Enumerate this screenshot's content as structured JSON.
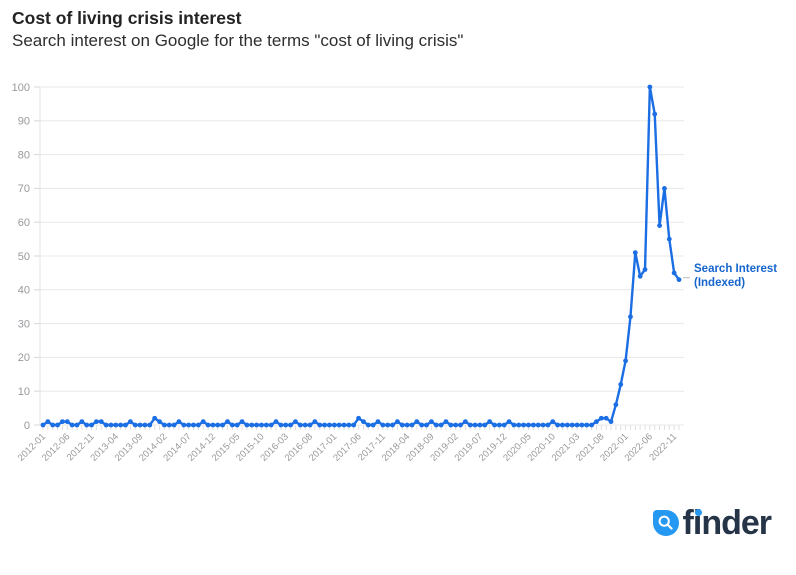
{
  "chart_data": {
    "type": "line",
    "title": "Cost of living crisis interest",
    "subtitle": "Search interest on Google for the terms \"cost of living crisis\"",
    "xlabel": "",
    "ylabel": "",
    "ylim": [
      0,
      100
    ],
    "yticks": [
      0,
      10,
      20,
      30,
      40,
      50,
      60,
      70,
      80,
      90,
      100
    ],
    "xtick_every": 5,
    "grid": "horizontal",
    "legend_position": "right-of-last-point",
    "legend": {
      "line1": "Search Interest",
      "line2": "(Indexed)"
    },
    "x": [
      "2012-01",
      "2012-02",
      "2012-03",
      "2012-04",
      "2012-05",
      "2012-06",
      "2012-07",
      "2012-08",
      "2012-09",
      "2012-10",
      "2012-11",
      "2012-12",
      "2013-01",
      "2013-02",
      "2013-03",
      "2013-04",
      "2013-05",
      "2013-06",
      "2013-07",
      "2013-08",
      "2013-09",
      "2013-10",
      "2013-11",
      "2013-12",
      "2014-01",
      "2014-02",
      "2014-03",
      "2014-04",
      "2014-05",
      "2014-06",
      "2014-07",
      "2014-08",
      "2014-09",
      "2014-10",
      "2014-11",
      "2014-12",
      "2015-01",
      "2015-02",
      "2015-03",
      "2015-04",
      "2015-05",
      "2015-06",
      "2015-07",
      "2015-08",
      "2015-09",
      "2015-10",
      "2015-11",
      "2015-12",
      "2016-01",
      "2016-02",
      "2016-03",
      "2016-04",
      "2016-05",
      "2016-06",
      "2016-07",
      "2016-08",
      "2016-09",
      "2016-10",
      "2016-11",
      "2016-12",
      "2017-01",
      "2017-02",
      "2017-03",
      "2017-04",
      "2017-05",
      "2017-06",
      "2017-07",
      "2017-08",
      "2017-09",
      "2017-10",
      "2017-11",
      "2017-12",
      "2018-01",
      "2018-02",
      "2018-03",
      "2018-04",
      "2018-05",
      "2018-06",
      "2018-07",
      "2018-08",
      "2018-09",
      "2018-10",
      "2018-11",
      "2018-12",
      "2019-01",
      "2019-02",
      "2019-03",
      "2019-04",
      "2019-05",
      "2019-06",
      "2019-07",
      "2019-08",
      "2019-09",
      "2019-10",
      "2019-11",
      "2019-12",
      "2020-01",
      "2020-02",
      "2020-03",
      "2020-04",
      "2020-05",
      "2020-06",
      "2020-07",
      "2020-08",
      "2020-09",
      "2020-10",
      "2020-11",
      "2020-12",
      "2021-01",
      "2021-02",
      "2021-03",
      "2021-04",
      "2021-05",
      "2021-06",
      "2021-07",
      "2021-08",
      "2021-09",
      "2021-10",
      "2021-11",
      "2021-12",
      "2022-01",
      "2022-02",
      "2022-03",
      "2022-04",
      "2022-05",
      "2022-06",
      "2022-07",
      "2022-08",
      "2022-09",
      "2022-10",
      "2022-11",
      "2022-12"
    ],
    "series": [
      {
        "name": "Search Interest (Indexed)",
        "color": "#1b6ee3",
        "values": [
          0,
          1,
          0,
          0,
          1,
          1,
          0,
          0,
          1,
          0,
          0,
          1,
          1,
          0,
          0,
          0,
          0,
          0,
          1,
          0,
          0,
          0,
          0,
          2,
          1,
          0,
          0,
          0,
          1,
          0,
          0,
          0,
          0,
          1,
          0,
          0,
          0,
          0,
          1,
          0,
          0,
          1,
          0,
          0,
          0,
          0,
          0,
          0,
          1,
          0,
          0,
          0,
          1,
          0,
          0,
          0,
          1,
          0,
          0,
          0,
          0,
          0,
          0,
          0,
          0,
          2,
          1,
          0,
          0,
          1,
          0,
          0,
          0,
          1,
          0,
          0,
          0,
          1,
          0,
          0,
          1,
          0,
          0,
          1,
          0,
          0,
          0,
          1,
          0,
          0,
          0,
          0,
          1,
          0,
          0,
          0,
          1,
          0,
          0,
          0,
          0,
          0,
          0,
          0,
          0,
          1,
          0,
          0,
          0,
          0,
          0,
          0,
          0,
          0,
          1,
          2,
          2,
          1,
          6,
          12,
          19,
          32,
          51,
          44,
          46,
          100,
          92,
          59,
          70,
          55,
          45,
          43
        ]
      }
    ]
  },
  "colors": {
    "line": "#1b6ee3",
    "grid": "#e8e8e8",
    "tick": "#d9d9d9",
    "axis_line": "#e3e3e3",
    "axis_label": "#97999c",
    "legend_text": "#1565cd",
    "logo_blue": "#2598f2",
    "brand_navy": "#253447"
  },
  "footer": {
    "brand": "finder"
  }
}
